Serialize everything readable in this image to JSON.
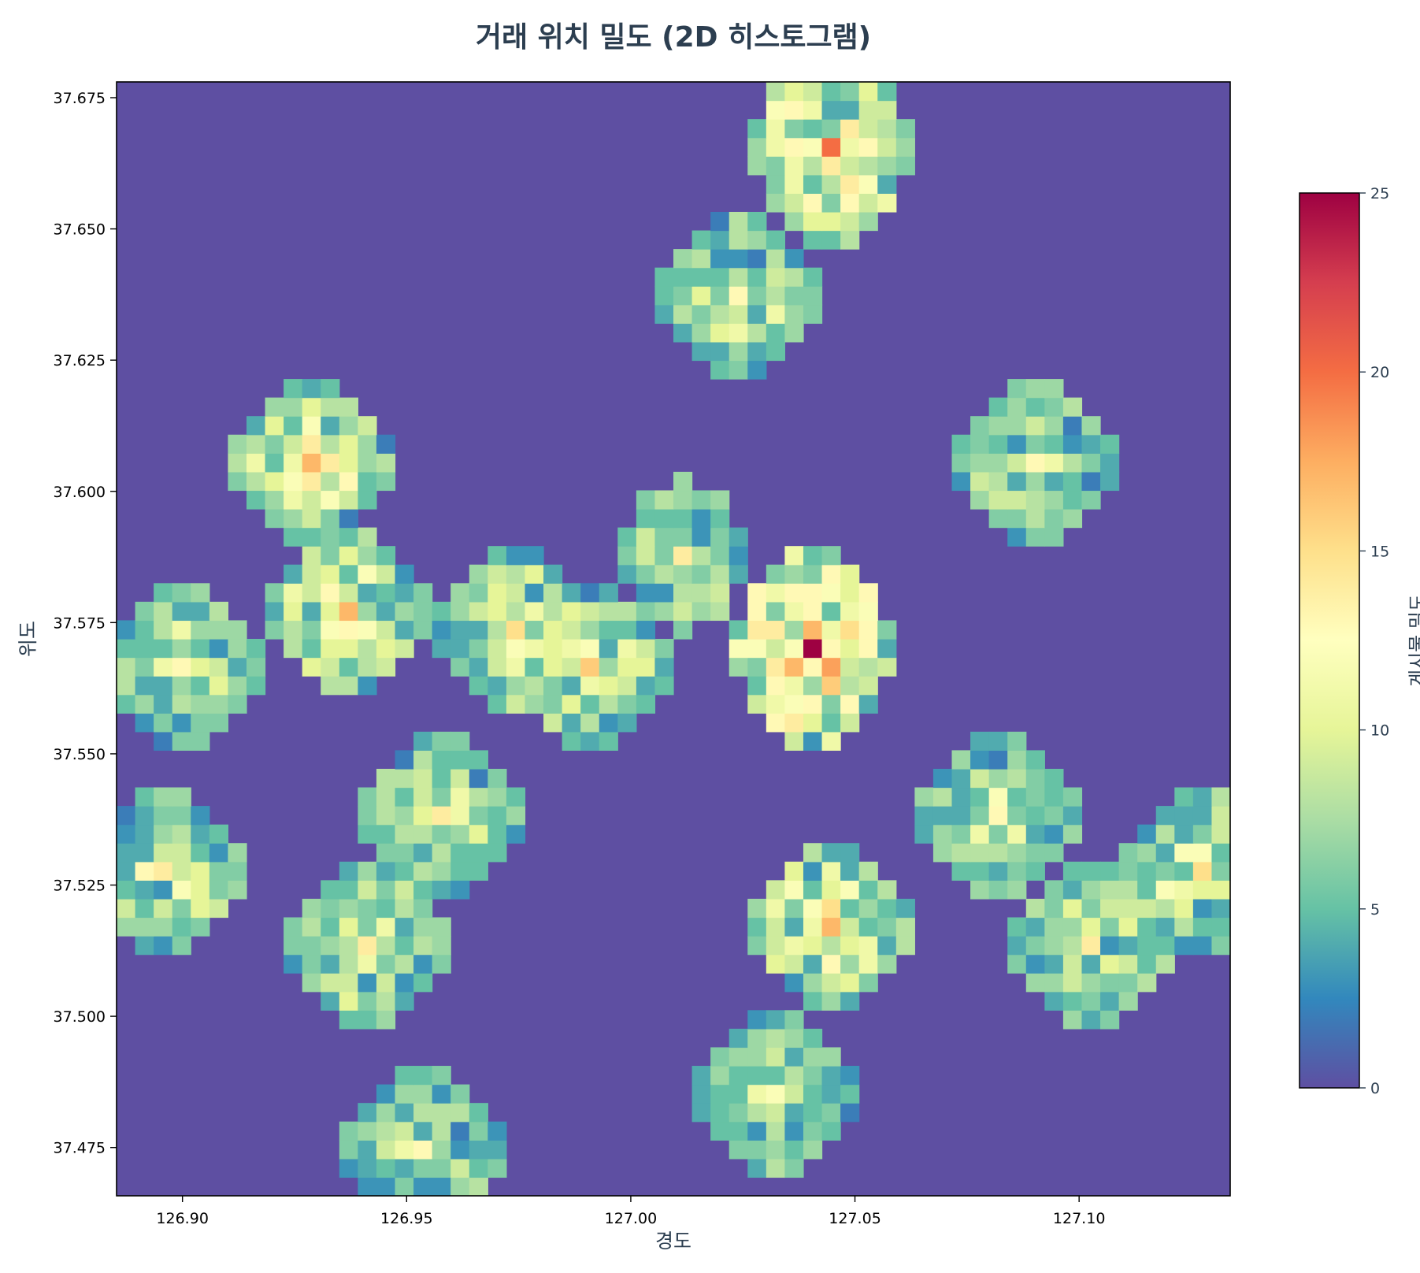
{
  "chart_data": {
    "type": "heatmap",
    "title": "거래 위치 밀도 (2D 히스토그램)",
    "xlabel": "경도",
    "ylabel": "위도",
    "xlim": [
      126.8853,
      127.1337
    ],
    "ylim": [
      37.4658,
      37.678
    ],
    "x_ticks": [
      126.9,
      126.95,
      127.0,
      127.05,
      127.1
    ],
    "x_tick_labels": [
      "126.90",
      "126.95",
      "127.00",
      "127.05",
      "127.10"
    ],
    "y_ticks": [
      37.475,
      37.5,
      37.525,
      37.55,
      37.575,
      37.6,
      37.625,
      37.65,
      37.675
    ],
    "y_tick_labels": [
      "37.475",
      "37.500",
      "37.525",
      "37.550",
      "37.575",
      "37.600",
      "37.625",
      "37.650",
      "37.675"
    ],
    "bins": [
      60,
      60
    ],
    "colormap": [
      "#5e4fa2",
      "#3288bd",
      "#66c2a5",
      "#abdda4",
      "#e6f598",
      "#ffffbf",
      "#fee08b",
      "#fdae61",
      "#f46d43",
      "#d53e4f",
      "#9e0142"
    ],
    "colorbar": {
      "label": "게시물 밀도",
      "range": [
        0,
        25
      ],
      "ticks": [
        0,
        5,
        10,
        15,
        20,
        25
      ],
      "tick_labels": [
        "0",
        "5",
        "10",
        "15",
        "20",
        "25"
      ]
    },
    "clusters": [
      {
        "lon": 127.045,
        "lat": 37.664,
        "peak": 20,
        "rx": 3,
        "ry": 4
      },
      {
        "lon": 127.023,
        "lat": 37.638,
        "peak": 13,
        "rx": 3,
        "ry": 3
      },
      {
        "lon": 126.929,
        "lat": 37.604,
        "peak": 17,
        "rx": 3,
        "ry": 3
      },
      {
        "lon": 127.091,
        "lat": 37.607,
        "peak": 13,
        "rx": 3,
        "ry": 3
      },
      {
        "lon": 127.012,
        "lat": 37.589,
        "peak": 14,
        "rx": 2,
        "ry": 3
      },
      {
        "lon": 126.938,
        "lat": 37.578,
        "peak": 17,
        "rx": 3,
        "ry": 3
      },
      {
        "lon": 126.975,
        "lat": 37.572,
        "peak": 15,
        "rx": 3,
        "ry": 3
      },
      {
        "lon": 126.99,
        "lat": 37.565,
        "peak": 16,
        "rx": 3,
        "ry": 3
      },
      {
        "lon": 127.04,
        "lat": 37.569,
        "peak": 25,
        "rx": 3,
        "ry": 4
      },
      {
        "lon": 126.9,
        "lat": 37.567,
        "peak": 13,
        "rx": 3,
        "ry": 3
      },
      {
        "lon": 126.958,
        "lat": 37.538,
        "peak": 14,
        "rx": 3,
        "ry": 3
      },
      {
        "lon": 127.083,
        "lat": 37.537,
        "peak": 13,
        "rx": 3,
        "ry": 3
      },
      {
        "lon": 126.895,
        "lat": 37.526,
        "peak": 14,
        "rx": 3,
        "ry": 3
      },
      {
        "lon": 127.126,
        "lat": 37.527,
        "peak": 15,
        "rx": 3,
        "ry": 3
      },
      {
        "lon": 126.94,
        "lat": 37.512,
        "peak": 14,
        "rx": 3,
        "ry": 3
      },
      {
        "lon": 127.045,
        "lat": 37.516,
        "peak": 17,
        "rx": 3,
        "ry": 3
      },
      {
        "lon": 127.103,
        "lat": 37.512,
        "peak": 14,
        "rx": 3,
        "ry": 3
      },
      {
        "lon": 127.031,
        "lat": 37.485,
        "peak": 12,
        "rx": 3,
        "ry": 3
      },
      {
        "lon": 126.953,
        "lat": 37.475,
        "peak": 13,
        "rx": 3,
        "ry": 3
      }
    ]
  }
}
